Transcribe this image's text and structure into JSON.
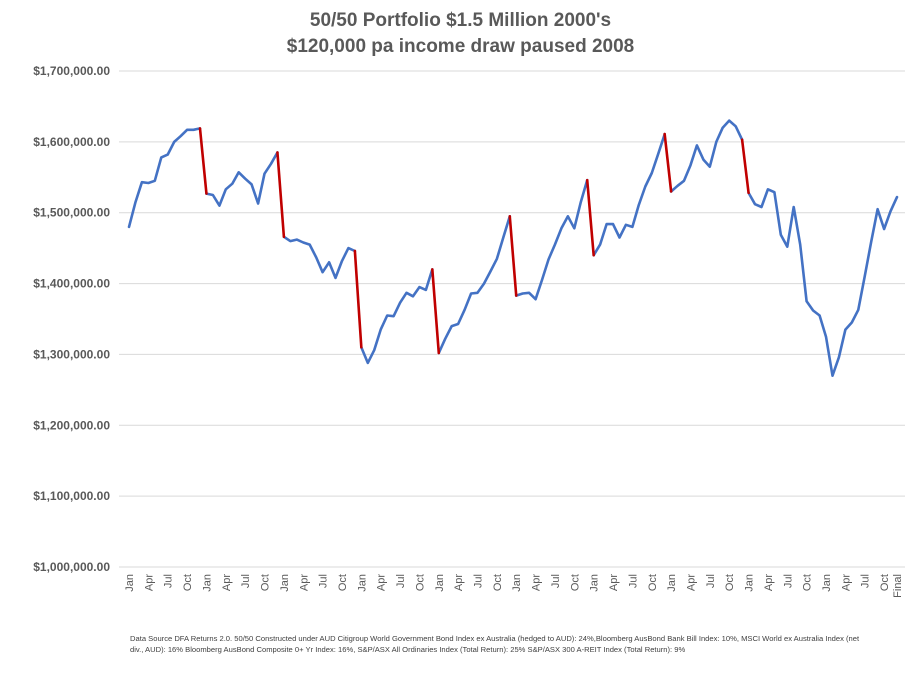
{
  "chart_data": {
    "type": "line",
    "title": "50/50 Portfolio $1.5 Million 2000's",
    "subtitle": "$120,000 pa income draw paused 2008",
    "xlabel": "",
    "ylabel": "",
    "ylim": [
      1000000,
      1700000
    ],
    "y_ticks": [
      "$1,000,000.00",
      "$1,100,000.00",
      "$1,200,000.00",
      "$1,300,000.00",
      "$1,400,000.00",
      "$1,500,000.00",
      "$1,600,000.00",
      "$1,700,000.00"
    ],
    "grid": true,
    "legend": "none",
    "x_tick_labels": [
      "Jan",
      "Apr",
      "Jul",
      "Oct",
      "Jan",
      "Apr",
      "Jul",
      "Oct",
      "Jan",
      "Apr",
      "Jul",
      "Oct",
      "Jan",
      "Apr",
      "Jul",
      "Oct",
      "Jan",
      "Apr",
      "Jul",
      "Oct",
      "Jan",
      "Apr",
      "Jul",
      "Oct",
      "Jan",
      "Apr",
      "Jul",
      "Oct",
      "Jan",
      "Apr",
      "Jul",
      "Oct",
      "Jan",
      "Apr",
      "Jul",
      "Oct",
      "Jan",
      "Apr",
      "Jul",
      "Oct",
      "Final"
    ],
    "series": [
      {
        "color": "#4472c4",
        "values": [
          1480000,
          1515000,
          1543000,
          1542000,
          1545000,
          1578000,
          1582000,
          1600000,
          1608000,
          1617000,
          1617000,
          1619000,
          1527000,
          1525000,
          1510000,
          1533000,
          1541000,
          1557000,
          1548000,
          1540000,
          1513000,
          1555000,
          1569000,
          1585000,
          1466000,
          1460000,
          1462000,
          1458000,
          1455000,
          1437000,
          1416000,
          1430000,
          1408000,
          1432000,
          1450000,
          1446000,
          1310000,
          1288000,
          1306000,
          1335000,
          1355000,
          1354000,
          1373000,
          1387000,
          1382000,
          1395000,
          1391000,
          1420000,
          1302000,
          1322000,
          1340000,
          1343000,
          1363000,
          1386000,
          1387000,
          1400000,
          1417000,
          1435000,
          1465000,
          1495000,
          1383000,
          1386000,
          1387000,
          1378000,
          1405000,
          1434000,
          1455000,
          1478000,
          1495000,
          1478000,
          1515000,
          1546000,
          1440000,
          1455000,
          1484000,
          1484000,
          1465000,
          1483000,
          1480000,
          1511000,
          1537000,
          1556000,
          1583000,
          1611000,
          1530000,
          1538000,
          1545000,
          1567000,
          1595000,
          1575000,
          1565000,
          1600000,
          1620000,
          1630000,
          1622000,
          1603000,
          1528000,
          1512000,
          1508000,
          1533000,
          1529000,
          1469000,
          1452000,
          1508000,
          1455000,
          1375000,
          1362000,
          1355000,
          1325000,
          1270000,
          1296000,
          1335000,
          1345000,
          1363000,
          1410000,
          1459000,
          1505000,
          1477000,
          1502000,
          1522000
        ]
      }
    ],
    "withdrawal_drops": {
      "color": "#c00000",
      "from_index": [
        11,
        23,
        35,
        47,
        59,
        71,
        83,
        95
      ]
    }
  },
  "footnote": "Data Source DFA Returns 2.0. 50/50 Constructed under AUD Citigroup World Government Bond Index ex Australia (hedged to AUD): 24%,Bloomberg AusBond Bank Bill Index: 10%, MSCI World ex Australia Index (net div., AUD): 16% Bloomberg AusBond Composite 0+ Yr Index: 16%, S&P/ASX All Ordinaries Index (Total Return): 25% S&P/ASX 300 A-REIT Index (Total Return): 9%"
}
